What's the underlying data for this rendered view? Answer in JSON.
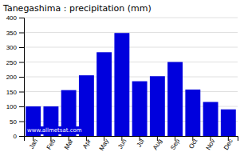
{
  "chart_data": {
    "type": "bar",
    "title": "Tanegashima : precipitation (mm)",
    "categories": [
      "Jan",
      "Feb",
      "Mar",
      "Apr",
      "May",
      "Jun",
      "Jul",
      "Aug",
      "Sep",
      "Oct",
      "Nov",
      "Dec"
    ],
    "values": [
      100,
      100,
      155,
      205,
      283,
      348,
      185,
      202,
      250,
      157,
      115,
      90
    ],
    "color": "#0000dd",
    "ylim": [
      0,
      400
    ],
    "yticks": [
      0,
      50,
      100,
      150,
      200,
      250,
      300,
      350,
      400
    ],
    "grid": true,
    "annotations": [
      "www.allmetsat.com"
    ]
  }
}
